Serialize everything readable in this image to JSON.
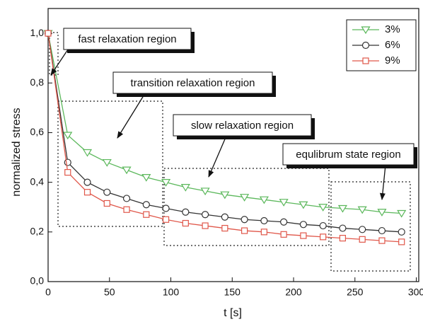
{
  "chart_data": {
    "type": "line",
    "xlabel": "t [s]",
    "ylabel": "normalized stress",
    "x": [
      0,
      16,
      32,
      48,
      64,
      80,
      96,
      112,
      128,
      144,
      160,
      176,
      192,
      208,
      224,
      240,
      256,
      272,
      288
    ],
    "series": [
      {
        "name": "3%",
        "color": "#5cb85c",
        "marker": "triangle-down",
        "values": [
          1.0,
          0.59,
          0.52,
          0.48,
          0.45,
          0.42,
          0.4,
          0.38,
          0.365,
          0.35,
          0.34,
          0.33,
          0.32,
          0.31,
          0.3,
          0.295,
          0.29,
          0.28,
          0.275
        ]
      },
      {
        "name": "6%",
        "color": "#333333",
        "marker": "circle",
        "values": [
          1.0,
          0.48,
          0.4,
          0.36,
          0.335,
          0.31,
          0.295,
          0.28,
          0.27,
          0.26,
          0.25,
          0.245,
          0.24,
          0.23,
          0.225,
          0.215,
          0.21,
          0.205,
          0.2
        ]
      },
      {
        "name": "9%",
        "color": "#e0574a",
        "marker": "square",
        "values": [
          1.0,
          0.44,
          0.36,
          0.315,
          0.29,
          0.27,
          0.25,
          0.235,
          0.225,
          0.215,
          0.205,
          0.2,
          0.19,
          0.185,
          0.18,
          0.175,
          0.17,
          0.165,
          0.16
        ]
      }
    ],
    "xlim": [
      0,
      302
    ],
    "xticks": [
      0,
      50,
      100,
      150,
      200,
      250,
      300
    ],
    "ylim": [
      0,
      1.1
    ],
    "yticks": [
      {
        "value": 0,
        "label": "0,0"
      },
      {
        "value": 0.2,
        "label": "0,2"
      },
      {
        "value": 0.4,
        "label": "0,4"
      },
      {
        "value": 0.6,
        "label": "0,6"
      },
      {
        "value": 0.8,
        "label": "0,8"
      },
      {
        "value": 1.0,
        "label": "1,0"
      }
    ],
    "legend": "upper right",
    "annotations": [
      "fast relaxation region",
      "transition relaxation region",
      "slow relaxation region",
      "equlibrum state region"
    ]
  }
}
